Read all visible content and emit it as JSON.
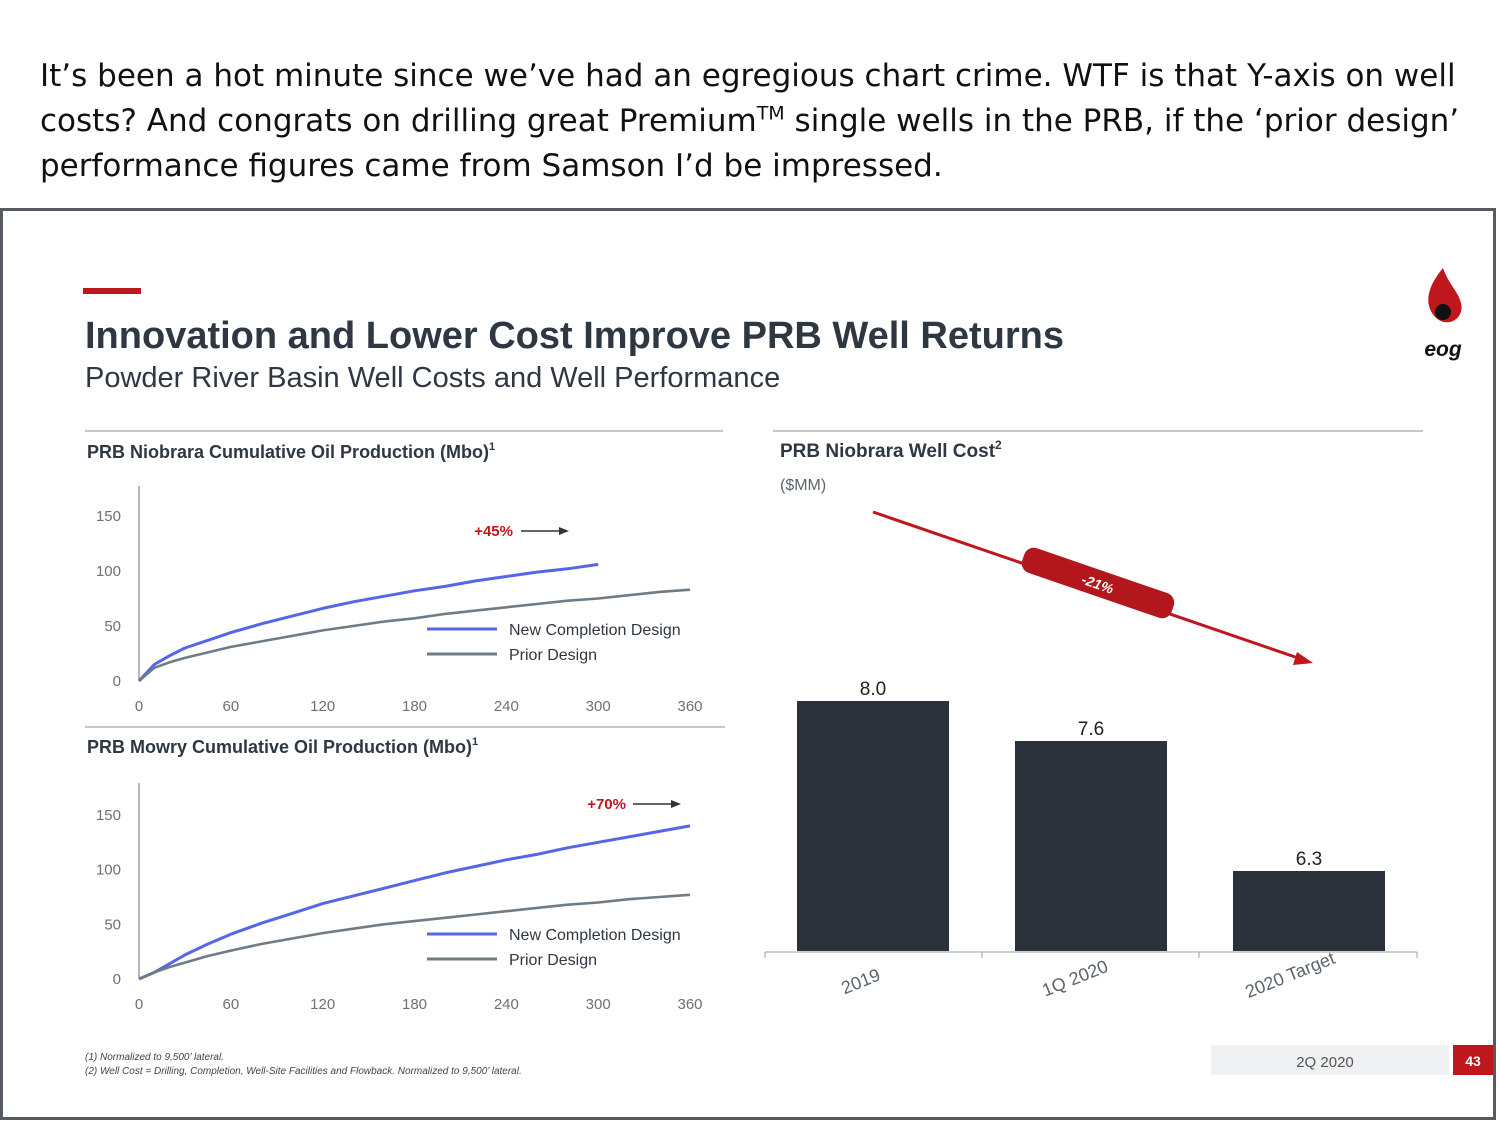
{
  "caption": {
    "line1": "It’s been a hot minute since we’ve had an egregious chart crime. WTF is that Y-axis on well",
    "line2a": "costs? And congrats on drilling great Premium",
    "line2sup": "TM",
    "line2b": " single wells in the PRB, if the ‘prior design’",
    "line3": "performance  figures came from Samson I’d be impressed."
  },
  "slide": {
    "title": "Innovation and Lower Cost Improve PRB Well Returns",
    "subtitle": "Powder River Basin Well Costs and Well Performance",
    "logo_text": "eog",
    "footnote1": "(1)   Normalized to 9,500’ lateral.",
    "footnote2": "(2)   Well Cost = Drilling, Completion, Well-Site Facilities and Flowback. Normalized to 9,500’ lateral.",
    "period": "2Q 2020",
    "page_number": "43",
    "colors": {
      "accent": "#c0161d",
      "bar": "#2c323b",
      "new": "#5566e6",
      "prior": "#6f7b85"
    }
  },
  "chart_data": [
    {
      "type": "line",
      "title": "PRB Niobrara Cumulative Oil Production (Mbo)",
      "title_sup": "1",
      "x_ticks": [
        "0",
        "60",
        "120",
        "180",
        "240",
        "300",
        "360"
      ],
      "y_ticks": [
        "0",
        "50",
        "100",
        "150"
      ],
      "xlim": [
        0,
        360
      ],
      "ylim": [
        0,
        150
      ],
      "annotation": "+45%",
      "legend_position": "lower-right",
      "series": [
        {
          "name": "New Completion Design",
          "color": "#5566e6",
          "x": [
            0,
            10,
            20,
            30,
            45,
            60,
            80,
            100,
            120,
            140,
            160,
            180,
            200,
            220,
            240,
            260,
            280,
            300
          ],
          "y": [
            0,
            15,
            23,
            30,
            37,
            44,
            52,
            59,
            66,
            72,
            77,
            82,
            86,
            91,
            95,
            99,
            102,
            106
          ]
        },
        {
          "name": "Prior Design",
          "color": "#6f7b85",
          "x": [
            0,
            10,
            20,
            30,
            45,
            60,
            80,
            100,
            120,
            140,
            160,
            180,
            200,
            220,
            240,
            260,
            280,
            300,
            320,
            340,
            360
          ],
          "y": [
            0,
            12,
            17,
            21,
            26,
            31,
            36,
            41,
            46,
            50,
            54,
            57,
            61,
            64,
            67,
            70,
            73,
            75,
            78,
            81,
            83
          ]
        }
      ]
    },
    {
      "type": "line",
      "title": "PRB Mowry Cumulative Oil Production (Mbo)",
      "title_sup": "1",
      "x_ticks": [
        "0",
        "60",
        "120",
        "180",
        "240",
        "300",
        "360"
      ],
      "y_ticks": [
        "0",
        "50",
        "100",
        "150"
      ],
      "xlim": [
        0,
        360
      ],
      "ylim": [
        0,
        150
      ],
      "annotation": "+70%",
      "legend_position": "lower-right",
      "series": [
        {
          "name": "New Completion Design",
          "color": "#5566e6",
          "x": [
            0,
            10,
            20,
            30,
            45,
            60,
            80,
            100,
            120,
            140,
            160,
            180,
            200,
            220,
            240,
            260,
            280,
            300,
            320,
            340,
            360
          ],
          "y": [
            0,
            6,
            14,
            22,
            32,
            41,
            51,
            60,
            69,
            76,
            83,
            90,
            97,
            103,
            109,
            114,
            120,
            125,
            130,
            135,
            140
          ]
        },
        {
          "name": "Prior Design",
          "color": "#6f7b85",
          "x": [
            0,
            10,
            20,
            30,
            45,
            60,
            80,
            100,
            120,
            140,
            160,
            180,
            200,
            220,
            240,
            260,
            280,
            300,
            320,
            340,
            360
          ],
          "y": [
            0,
            6,
            11,
            15,
            21,
            26,
            32,
            37,
            42,
            46,
            50,
            53,
            56,
            59,
            62,
            65,
            68,
            70,
            73,
            75,
            77
          ]
        }
      ]
    },
    {
      "type": "bar",
      "title": "PRB Niobrara Well Cost",
      "title_sup": "2",
      "ylabel": "($MM)",
      "categories": [
        "2019",
        "1Q 2020",
        "2020 Target"
      ],
      "values": [
        8.0,
        7.6,
        6.3
      ],
      "value_labels": [
        "8.0",
        "7.6",
        "6.3"
      ],
      "annotation": "-21%",
      "visual_ylim": [
        5.1,
        8.9
      ]
    }
  ]
}
